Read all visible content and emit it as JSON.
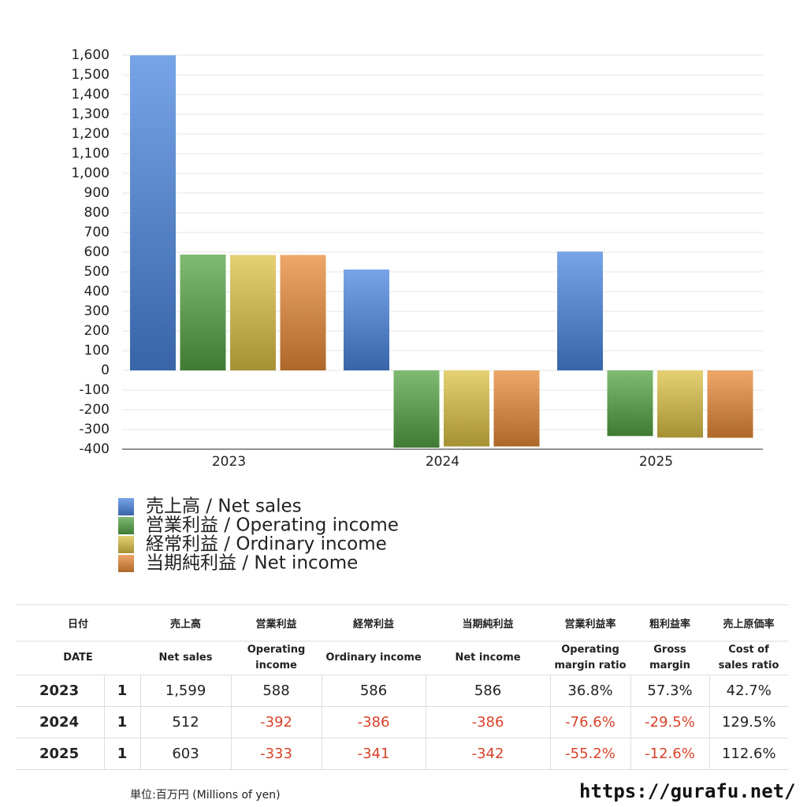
{
  "chart_data": {
    "type": "bar",
    "categories": [
      "2023",
      "2024",
      "2025"
    ],
    "series": [
      {
        "name": "売上高 / Net sales",
        "color": "#4a86e0",
        "values": [
          1599,
          512,
          603
        ]
      },
      {
        "name": "営業利益 / Operating income",
        "color": "#55a444",
        "values": [
          588,
          -392,
          -333
        ]
      },
      {
        "name": "経常利益 / Ordinary income",
        "color": "#dcc245",
        "values": [
          586,
          -386,
          -341
        ]
      },
      {
        "name": "当期純利益 / Net income",
        "color": "#e88a36",
        "values": [
          586,
          -386,
          -342
        ]
      }
    ],
    "ylim": [
      -400,
      1600
    ],
    "yticks": [
      -400,
      -300,
      -200,
      -100,
      0,
      100,
      200,
      300,
      400,
      500,
      600,
      700,
      800,
      900,
      {
        "value": 1000,
        "label": "1,000"
      },
      {
        "value": 1100,
        "label": "1,100"
      },
      {
        "value": 1200,
        "label": "1,200"
      },
      {
        "value": 1300,
        "label": "1,300"
      },
      {
        "value": 1400,
        "label": "1,400"
      },
      {
        "value": 1500,
        "label": "1,500"
      },
      {
        "value": 1600,
        "label": "1,600"
      }
    ],
    "grid": true
  },
  "table": {
    "header": [
      [
        "日付",
        "売上高",
        "営業利益",
        "経常利益",
        "当期純利益",
        "営業利益率",
        "粗利益率",
        "売上原価率"
      ],
      [
        "DATE",
        "Net sales",
        "Operating income",
        "Ordinary income",
        "Net income",
        "Operating margin ratio",
        "Gross margin",
        "Cost of sales ratio"
      ]
    ],
    "rows": [
      [
        "2023",
        "1",
        "1,599",
        "588",
        "586",
        "586",
        "36.8%",
        "57.3%",
        "42.7%"
      ],
      [
        "2024",
        "1",
        "512",
        "-392",
        "-386",
        "-386",
        "-76.6%",
        "-29.5%",
        "129.5%"
      ],
      [
        "2025",
        "1",
        "603",
        "-333",
        "-341",
        "-342",
        "-55.2%",
        "-12.6%",
        "112.6%"
      ]
    ]
  },
  "footer": {
    "unit": "単位:百万円 (Millions of yen)",
    "url": "https://gurafu.net/"
  }
}
